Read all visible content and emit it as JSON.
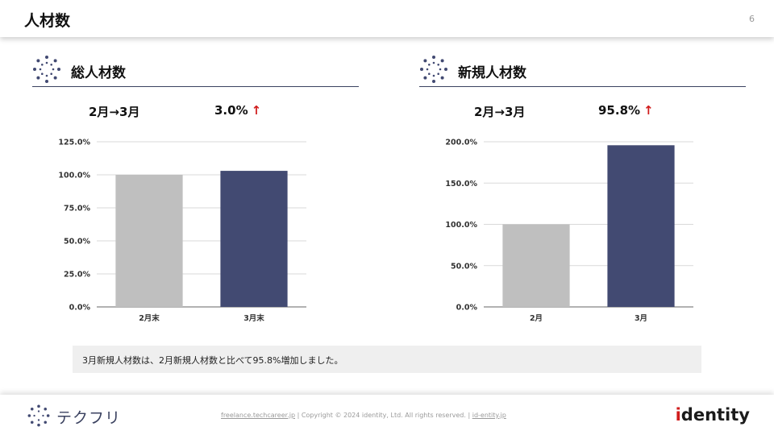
{
  "header": {
    "title": "人材数",
    "page_number": "6"
  },
  "sections": [
    {
      "title": "総人材数",
      "period": "2月→3月",
      "change": "3.0%",
      "arrow": "↑",
      "chart_data": {
        "type": "bar",
        "categories": [
          "2月末",
          "3月末"
        ],
        "values": [
          100.0,
          103.0
        ],
        "yticks": [
          "125.0%",
          "100.0%",
          "75.0%",
          "50.0%",
          "25.0%",
          "0.0%"
        ],
        "ylim": [
          0,
          125
        ],
        "colors": [
          "#bfbfbf",
          "#424a72"
        ],
        "grid": true
      }
    },
    {
      "title": "新規人材数",
      "period": "2月→3月",
      "change": "95.8%",
      "arrow": "↑",
      "chart_data": {
        "type": "bar",
        "categories": [
          "2月",
          "3月"
        ],
        "values": [
          100.0,
          195.8
        ],
        "yticks": [
          "200.0%",
          "150.0%",
          "100.0%",
          "50.0%",
          "0.0%"
        ],
        "ylim": [
          0,
          200
        ],
        "colors": [
          "#bfbfbf",
          "#424a72"
        ],
        "grid": true
      }
    }
  ],
  "caption": "3月新規人材数は、2月新規人材数と比べて95.8%増加しました。",
  "footer": {
    "brand": "テクフリ",
    "link1": "freelance.techcareer.jp",
    "sep1": "|",
    "copyright": "Copyright © 2024 identity, Ltd. All rights reserved.",
    "sep2": "|",
    "link2": "id-entity.jp",
    "company_i": "i",
    "company_rest": "dentity"
  },
  "colors": {
    "accent": "#424a72",
    "bar_prev": "#bfbfbf",
    "arrow": "#d01c1c"
  }
}
